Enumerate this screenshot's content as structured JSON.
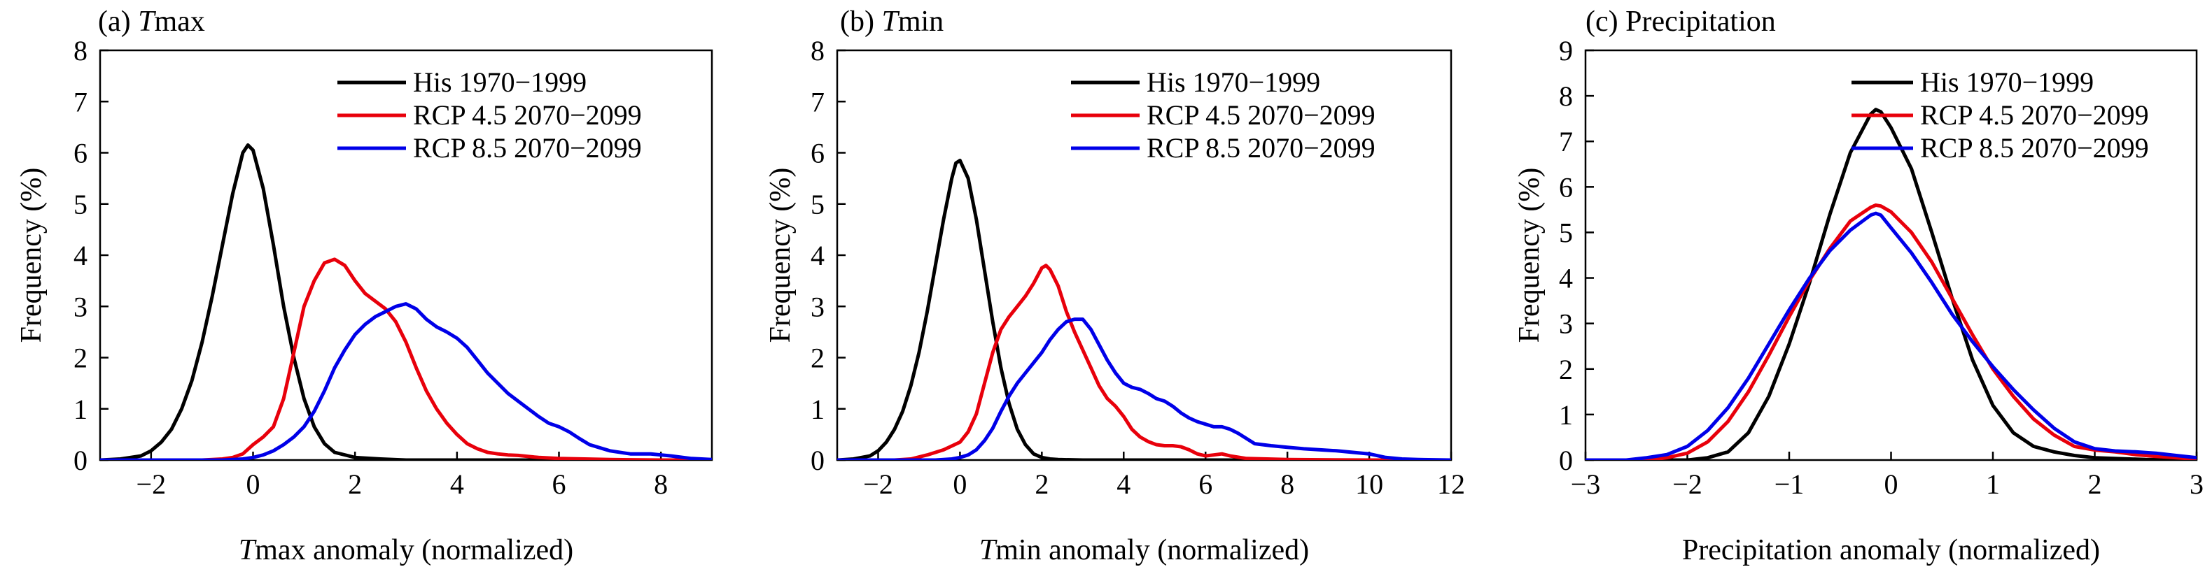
{
  "chart_data": [
    {
      "type": "line",
      "panel_label": "(a) ",
      "title_italic": "T",
      "title_rest": "max",
      "xlabel_italic": "T",
      "xlabel_rest": "max anomaly (normalized)",
      "ylabel": "Frequency (%)",
      "xlim": [
        -3,
        9
      ],
      "ylim": [
        0,
        8
      ],
      "xticks": [
        -2,
        0,
        2,
        4,
        6,
        8
      ],
      "yticks": [
        0,
        1,
        2,
        3,
        4,
        5,
        6,
        7,
        8
      ],
      "legend_position": "top-right",
      "series": [
        {
          "name": "His 1970−1999",
          "color": "#000000",
          "x": [
            -3,
            -2.6,
            -2.2,
            -2,
            -1.8,
            -1.6,
            -1.4,
            -1.2,
            -1,
            -0.8,
            -0.6,
            -0.4,
            -0.2,
            -0.1,
            0,
            0.2,
            0.4,
            0.6,
            0.8,
            1,
            1.2,
            1.4,
            1.6,
            2,
            2.5,
            3,
            4,
            5,
            6,
            7,
            8,
            9
          ],
          "y": [
            0,
            0.02,
            0.08,
            0.18,
            0.35,
            0.6,
            1.0,
            1.55,
            2.3,
            3.2,
            4.2,
            5.2,
            6.0,
            6.15,
            6.05,
            5.3,
            4.2,
            3.0,
            2.0,
            1.2,
            0.65,
            0.32,
            0.15,
            0.05,
            0.02,
            0,
            0,
            0,
            0,
            0,
            0,
            0
          ]
        },
        {
          "name": "RCP 4.5 2070−2099",
          "color": "#e8000b",
          "x": [
            -3,
            -1,
            -0.6,
            -0.4,
            -0.2,
            0,
            0.2,
            0.4,
            0.6,
            0.8,
            1,
            1.2,
            1.4,
            1.6,
            1.8,
            2,
            2.2,
            2.4,
            2.6,
            2.8,
            3,
            3.2,
            3.4,
            3.6,
            3.8,
            4,
            4.2,
            4.4,
            4.6,
            4.8,
            5,
            5.2,
            5.4,
            5.6,
            6,
            6.5,
            7,
            8,
            9
          ],
          "y": [
            0,
            0,
            0.02,
            0.05,
            0.12,
            0.3,
            0.45,
            0.65,
            1.2,
            2.1,
            3.0,
            3.5,
            3.85,
            3.92,
            3.8,
            3.5,
            3.25,
            3.1,
            2.95,
            2.7,
            2.3,
            1.8,
            1.35,
            1.0,
            0.72,
            0.5,
            0.32,
            0.22,
            0.15,
            0.12,
            0.1,
            0.09,
            0.07,
            0.05,
            0.03,
            0.02,
            0.01,
            0,
            0
          ]
        },
        {
          "name": "RCP 8.5 2070−2099",
          "color": "#0000e8",
          "x": [
            -3,
            -0.6,
            -0.2,
            0,
            0.2,
            0.4,
            0.6,
            0.8,
            1,
            1.2,
            1.4,
            1.6,
            1.8,
            2,
            2.2,
            2.4,
            2.6,
            2.8,
            3,
            3.2,
            3.4,
            3.6,
            3.8,
            4,
            4.2,
            4.4,
            4.6,
            4.8,
            5,
            5.2,
            5.4,
            5.6,
            5.8,
            6,
            6.2,
            6.4,
            6.6,
            7,
            7.4,
            7.8,
            8.2,
            8.6,
            9
          ],
          "y": [
            0,
            0,
            0.02,
            0.05,
            0.1,
            0.18,
            0.3,
            0.45,
            0.65,
            0.95,
            1.35,
            1.8,
            2.15,
            2.45,
            2.65,
            2.8,
            2.9,
            3.0,
            3.05,
            2.95,
            2.75,
            2.6,
            2.5,
            2.38,
            2.2,
            1.95,
            1.7,
            1.5,
            1.3,
            1.15,
            1.0,
            0.85,
            0.72,
            0.65,
            0.55,
            0.42,
            0.3,
            0.18,
            0.12,
            0.12,
            0.08,
            0.03,
            0.01
          ]
        }
      ]
    },
    {
      "type": "line",
      "panel_label": "(b) ",
      "title_italic": "T",
      "title_rest": "min",
      "xlabel_italic": "T",
      "xlabel_rest": "min anomaly (normalized)",
      "ylabel": "Frequency (%)",
      "xlim": [
        -3,
        12
      ],
      "ylim": [
        0,
        8
      ],
      "xticks": [
        -2,
        0,
        2,
        4,
        6,
        8,
        10,
        12
      ],
      "yticks": [
        0,
        1,
        2,
        3,
        4,
        5,
        6,
        7,
        8
      ],
      "legend_position": "top-right",
      "series": [
        {
          "name": "His 1970−1999",
          "color": "#000000",
          "x": [
            -3,
            -2.6,
            -2.2,
            -2,
            -1.8,
            -1.6,
            -1.4,
            -1.2,
            -1,
            -0.8,
            -0.6,
            -0.4,
            -0.2,
            -0.1,
            0,
            0.2,
            0.4,
            0.6,
            0.8,
            1,
            1.2,
            1.4,
            1.6,
            1.8,
            2,
            2.2,
            2.4,
            3,
            4,
            6,
            8,
            10,
            12
          ],
          "y": [
            0,
            0.02,
            0.08,
            0.18,
            0.35,
            0.6,
            0.95,
            1.45,
            2.1,
            2.9,
            3.8,
            4.7,
            5.5,
            5.8,
            5.85,
            5.5,
            4.7,
            3.7,
            2.7,
            1.8,
            1.1,
            0.6,
            0.3,
            0.12,
            0.05,
            0.02,
            0.01,
            0,
            0,
            0,
            0,
            0,
            0
          ]
        },
        {
          "name": "RCP 4.5 2070−2099",
          "color": "#e8000b",
          "x": [
            -3,
            -1.6,
            -1.2,
            -0.8,
            -0.4,
            0,
            0.2,
            0.4,
            0.6,
            0.8,
            1,
            1.2,
            1.4,
            1.6,
            1.8,
            2,
            2.1,
            2.2,
            2.4,
            2.6,
            2.8,
            3,
            3.2,
            3.4,
            3.6,
            3.8,
            4,
            4.2,
            4.4,
            4.6,
            4.8,
            5,
            5.2,
            5.4,
            5.6,
            5.8,
            6,
            6.2,
            6.4,
            6.6,
            7,
            8,
            10,
            12
          ],
          "y": [
            0,
            0,
            0.02,
            0.1,
            0.2,
            0.35,
            0.55,
            0.9,
            1.5,
            2.1,
            2.55,
            2.8,
            3.0,
            3.2,
            3.45,
            3.75,
            3.8,
            3.72,
            3.4,
            2.9,
            2.5,
            2.15,
            1.8,
            1.45,
            1.2,
            1.05,
            0.85,
            0.6,
            0.45,
            0.36,
            0.3,
            0.28,
            0.28,
            0.26,
            0.2,
            0.12,
            0.08,
            0.1,
            0.12,
            0.08,
            0.03,
            0.01,
            0,
            0
          ]
        },
        {
          "name": "RCP 8.5 2070−2099",
          "color": "#0000e8",
          "x": [
            -3,
            -0.6,
            -0.2,
            0,
            0.2,
            0.4,
            0.6,
            0.8,
            1,
            1.2,
            1.4,
            1.6,
            1.8,
            2,
            2.2,
            2.4,
            2.6,
            2.8,
            3,
            3.2,
            3.4,
            3.6,
            3.8,
            4,
            4.2,
            4.4,
            4.6,
            4.8,
            5,
            5.2,
            5.4,
            5.6,
            5.8,
            6,
            6.2,
            6.4,
            6.6,
            6.8,
            7,
            7.2,
            7.6,
            8,
            8.4,
            8.8,
            9.2,
            9.6,
            10,
            10.4,
            10.8,
            11.2,
            12
          ],
          "y": [
            0,
            0,
            0.02,
            0.05,
            0.1,
            0.2,
            0.38,
            0.62,
            0.95,
            1.25,
            1.5,
            1.7,
            1.9,
            2.1,
            2.35,
            2.55,
            2.7,
            2.75,
            2.75,
            2.55,
            2.25,
            1.95,
            1.7,
            1.5,
            1.42,
            1.38,
            1.3,
            1.2,
            1.15,
            1.05,
            0.92,
            0.82,
            0.75,
            0.7,
            0.65,
            0.65,
            0.6,
            0.52,
            0.42,
            0.32,
            0.28,
            0.25,
            0.22,
            0.2,
            0.18,
            0.15,
            0.12,
            0.05,
            0.02,
            0.01,
            0
          ]
        }
      ]
    },
    {
      "type": "line",
      "panel_label": "(c) ",
      "title_italic": "",
      "title_rest": "Precipitation",
      "xlabel_italic": "",
      "xlabel_rest": "Precipitation anomaly (normalized)",
      "ylabel": "Frequency (%)",
      "xlim": [
        -3,
        3
      ],
      "ylim": [
        0,
        9
      ],
      "xticks": [
        -3,
        -2,
        -1,
        0,
        1,
        2,
        3
      ],
      "yticks": [
        0,
        1,
        2,
        3,
        4,
        5,
        6,
        7,
        8,
        9
      ],
      "legend_position": "top-right",
      "series": [
        {
          "name": "His 1970−1999",
          "color": "#000000",
          "x": [
            -3,
            -2,
            -1.8,
            -1.6,
            -1.4,
            -1.2,
            -1,
            -0.8,
            -0.6,
            -0.4,
            -0.2,
            -0.15,
            -0.1,
            0,
            0.2,
            0.4,
            0.6,
            0.8,
            1,
            1.2,
            1.4,
            1.6,
            1.8,
            2,
            2.5,
            3
          ],
          "y": [
            0,
            0,
            0.05,
            0.18,
            0.6,
            1.4,
            2.55,
            3.9,
            5.4,
            6.75,
            7.6,
            7.7,
            7.65,
            7.3,
            6.4,
            5.0,
            3.55,
            2.2,
            1.2,
            0.6,
            0.3,
            0.18,
            0.1,
            0.05,
            0.01,
            0
          ]
        },
        {
          "name": "RCP 4.5 2070−2099",
          "color": "#e8000b",
          "x": [
            -3,
            -2.4,
            -2.2,
            -2,
            -1.8,
            -1.6,
            -1.4,
            -1.2,
            -1,
            -0.8,
            -0.6,
            -0.4,
            -0.2,
            -0.15,
            -0.1,
            0,
            0.2,
            0.4,
            0.6,
            0.8,
            1,
            1.2,
            1.4,
            1.6,
            1.8,
            2,
            2.2,
            2.4,
            2.6,
            2.8,
            3
          ],
          "y": [
            0,
            0,
            0.05,
            0.15,
            0.4,
            0.85,
            1.5,
            2.3,
            3.15,
            3.95,
            4.65,
            5.25,
            5.55,
            5.6,
            5.58,
            5.45,
            5.0,
            4.35,
            3.55,
            2.75,
            2.0,
            1.4,
            0.9,
            0.55,
            0.3,
            0.22,
            0.18,
            0.12,
            0.08,
            0.05,
            0.02
          ]
        },
        {
          "name": "RCP 8.5 2070−2099",
          "color": "#0000e8",
          "x": [
            -3,
            -2.6,
            -2.4,
            -2.2,
            -2,
            -1.8,
            -1.6,
            -1.4,
            -1.2,
            -1,
            -0.8,
            -0.6,
            -0.4,
            -0.2,
            -0.15,
            -0.1,
            0,
            0.2,
            0.4,
            0.6,
            0.8,
            1,
            1.2,
            1.4,
            1.6,
            1.8,
            2,
            2.2,
            2.4,
            2.6,
            2.8,
            3
          ],
          "y": [
            0,
            0,
            0.05,
            0.12,
            0.3,
            0.65,
            1.15,
            1.8,
            2.55,
            3.3,
            4.0,
            4.6,
            5.05,
            5.38,
            5.42,
            5.38,
            5.1,
            4.55,
            3.9,
            3.2,
            2.6,
            2.05,
            1.55,
            1.1,
            0.7,
            0.4,
            0.25,
            0.2,
            0.18,
            0.15,
            0.1,
            0.05
          ]
        }
      ]
    }
  ]
}
